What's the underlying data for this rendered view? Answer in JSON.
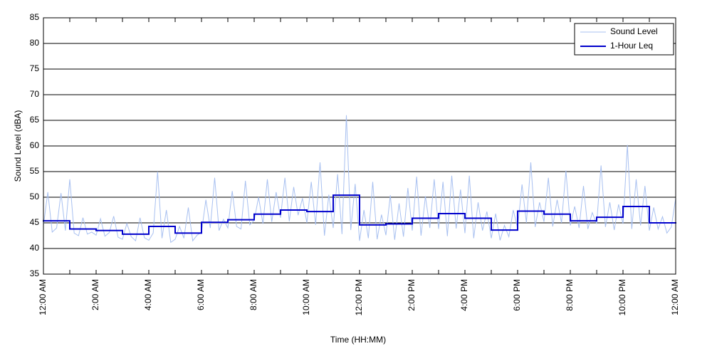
{
  "chart_data": {
    "type": "line",
    "xlabel": "Time (HH:MM)",
    "ylabel": "Sound Level (dBA)",
    "xlim": [
      0,
      1440
    ],
    "ylim": [
      35,
      85
    ],
    "xticks": [
      {
        "value": 0,
        "label": "12:00 AM"
      },
      {
        "value": 120,
        "label": "2:00 AM"
      },
      {
        "value": 240,
        "label": "4:00 AM"
      },
      {
        "value": 360,
        "label": "6:00 AM"
      },
      {
        "value": 480,
        "label": "8:00 AM"
      },
      {
        "value": 600,
        "label": "10:00 AM"
      },
      {
        "value": 720,
        "label": "12:00 PM"
      },
      {
        "value": 840,
        "label": "2:00 PM"
      },
      {
        "value": 960,
        "label": "4:00 PM"
      },
      {
        "value": 1080,
        "label": "6:00 PM"
      },
      {
        "value": 1200,
        "label": "8:00 PM"
      },
      {
        "value": 1320,
        "label": "10:00 PM"
      },
      {
        "value": 1440,
        "label": "12:00 AM"
      }
    ],
    "xminorticks": [
      60,
      180,
      300,
      420,
      540,
      660,
      780,
      900,
      1020,
      1140,
      1260,
      1380
    ],
    "yticks": [
      35,
      40,
      45,
      50,
      55,
      60,
      65,
      70,
      75,
      80,
      85
    ],
    "grid": true,
    "legend": "upper right",
    "series": [
      {
        "name": "Sound Level",
        "color": "#a8c0f0",
        "x": [
          0,
          10,
          20,
          30,
          40,
          50,
          60,
          70,
          80,
          90,
          100,
          110,
          120,
          130,
          140,
          150,
          160,
          170,
          180,
          190,
          200,
          210,
          220,
          230,
          240,
          250,
          260,
          270,
          280,
          290,
          300,
          310,
          320,
          330,
          340,
          350,
          360,
          370,
          380,
          390,
          400,
          410,
          420,
          430,
          440,
          450,
          460,
          470,
          480,
          490,
          500,
          510,
          520,
          530,
          540,
          550,
          560,
          570,
          580,
          590,
          600,
          610,
          620,
          630,
          640,
          650,
          660,
          670,
          680,
          690,
          700,
          710,
          720,
          730,
          740,
          750,
          760,
          770,
          780,
          790,
          800,
          810,
          820,
          830,
          840,
          850,
          860,
          870,
          880,
          890,
          900,
          910,
          920,
          930,
          940,
          950,
          960,
          970,
          980,
          990,
          1000,
          1010,
          1020,
          1030,
          1040,
          1050,
          1060,
          1070,
          1080,
          1090,
          1100,
          1110,
          1120,
          1130,
          1140,
          1150,
          1160,
          1170,
          1180,
          1190,
          1200,
          1210,
          1220,
          1230,
          1240,
          1250,
          1260,
          1270,
          1280,
          1290,
          1300,
          1310,
          1320,
          1330,
          1340,
          1350,
          1360,
          1370,
          1380,
          1390,
          1400,
          1410,
          1420,
          1430,
          1440
        ],
        "values": [
          44.5,
          51,
          43.2,
          44,
          50.8,
          43.5,
          53.5,
          43,
          42.5,
          46,
          42.8,
          43.2,
          42.6,
          45.8,
          42.4,
          43.1,
          46.3,
          42.2,
          41.8,
          44.9,
          42.3,
          41.5,
          46,
          42.1,
          41.6,
          43,
          55,
          42,
          47.5,
          41.2,
          41.8,
          44.3,
          42,
          48,
          41.5,
          42.6,
          43.2,
          49.5,
          44,
          53.8,
          43.5,
          45.7,
          44,
          51.2,
          44.3,
          43.8,
          53.2,
          44.6,
          45.5,
          50,
          44.8,
          53.5,
          45.2,
          51,
          46,
          53.8,
          45.3,
          52,
          46.5,
          49.8,
          45,
          53,
          44.6,
          56.8,
          42.5,
          50.5,
          44,
          54.5,
          42.8,
          66,
          43.6,
          52.6,
          41.5,
          47.5,
          42,
          53,
          41.8,
          46.6,
          42.6,
          50.4,
          41.7,
          48.8,
          42.3,
          51.8,
          43.5,
          54,
          42.5,
          50.2,
          44,
          53.5,
          43.8,
          53,
          42.4,
          54.2,
          43.9,
          51.5,
          43,
          54.2,
          42,
          49,
          43.5,
          47.2,
          42,
          46.8,
          41.6,
          44.5,
          42.3,
          47.5,
          44,
          52.5,
          45,
          56.8,
          44.2,
          49,
          45.2,
          53.8,
          44.3,
          49.5,
          45,
          55.2,
          44.5,
          48.2,
          44,
          52.2,
          43.8,
          47,
          44.8,
          56.2,
          44.2,
          49,
          43.6,
          48.6,
          44.8,
          60.2,
          43.8,
          53.5,
          44.5,
          52.2,
          43.5,
          48,
          43.8,
          46.2,
          43,
          44.2,
          49.8
        ]
      },
      {
        "name": "1-Hour Leq",
        "color": "#0000cc",
        "step": "post",
        "x": [
          0,
          60,
          120,
          180,
          240,
          300,
          360,
          420,
          480,
          540,
          600,
          660,
          720,
          780,
          840,
          900,
          960,
          1020,
          1080,
          1140,
          1200,
          1260,
          1320,
          1380
        ],
        "values": [
          45.4,
          43.8,
          43.5,
          42.8,
          44.3,
          43,
          45.1,
          45.6,
          46.7,
          47.5,
          47.2,
          50.4,
          44.6,
          44.8,
          45.9,
          46.8,
          45.9,
          43.6,
          47.3,
          46.7,
          45.4,
          46.1,
          48.2,
          45
        ]
      }
    ]
  }
}
